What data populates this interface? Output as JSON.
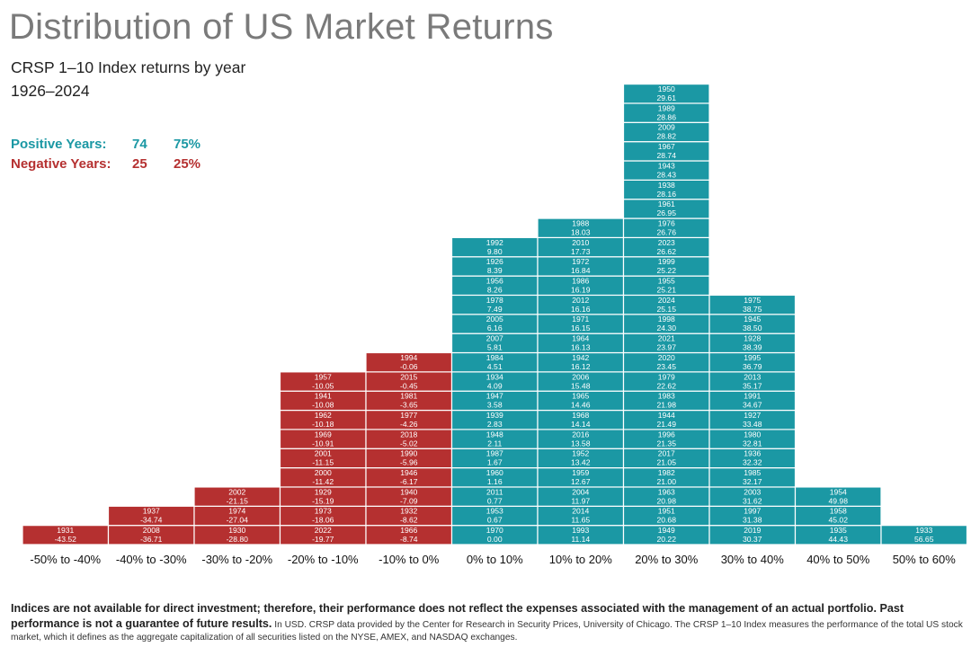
{
  "header": {
    "title": "Distribution of US Market Returns",
    "subtitle": "CRSP 1–10 Index returns by year",
    "period": "1926–2024"
  },
  "stats": {
    "positive_label": "Positive Years:",
    "positive_count": "74",
    "positive_pct": "75%",
    "negative_label": "Negative Years:",
    "negative_count": "25",
    "negative_pct": "25%"
  },
  "colors": {
    "positive": "#1b98a4",
    "negative": "#b53030"
  },
  "footnote": {
    "bold": "Indices are not available for direct investment; therefore, their performance does not reflect the expenses associated with the management of an actual portfolio. Past performance is not a guarantee of future results.",
    "regular": " In USD. CRSP data provided by the Center for Research in Security Prices, University of Chicago. The CRSP 1–10 Index measures the performance of the total US stock market, which it defines as the aggregate capitalization of all securities listed on the NYSE, AMEX, and NASDAQ exchanges."
  },
  "chart_data": {
    "type": "bar",
    "title": "Distribution of US Market Returns",
    "categories": [
      "-50% to -40%",
      "-40% to -30%",
      "-30% to -20%",
      "-20% to -10%",
      "-10% to 0%",
      "0% to 10%",
      "10% to 20%",
      "20% to 30%",
      "30% to 40%",
      "40% to 50%",
      "50% to 60%"
    ],
    "bins": [
      {
        "sign": "negative",
        "years": [
          {
            "year": "1931",
            "ret": "-43.52"
          }
        ]
      },
      {
        "sign": "negative",
        "years": [
          {
            "year": "2008",
            "ret": "-36.71"
          },
          {
            "year": "1937",
            "ret": "-34.74"
          }
        ]
      },
      {
        "sign": "negative",
        "years": [
          {
            "year": "1930",
            "ret": "-28.80"
          },
          {
            "year": "1974",
            "ret": "-27.04"
          },
          {
            "year": "2002",
            "ret": "-21.15"
          }
        ]
      },
      {
        "sign": "negative",
        "years": [
          {
            "year": "2022",
            "ret": "-19.77"
          },
          {
            "year": "1973",
            "ret": "-18.06"
          },
          {
            "year": "1929",
            "ret": "-15.19"
          },
          {
            "year": "2000",
            "ret": "-11.42"
          },
          {
            "year": "2001",
            "ret": "-11.15"
          },
          {
            "year": "1969",
            "ret": "-10.91"
          },
          {
            "year": "1962",
            "ret": "-10.18"
          },
          {
            "year": "1941",
            "ret": "-10.08"
          },
          {
            "year": "1957",
            "ret": "-10.05"
          }
        ]
      },
      {
        "sign": "negative",
        "years": [
          {
            "year": "1966",
            "ret": "-8.74"
          },
          {
            "year": "1932",
            "ret": "-8.62"
          },
          {
            "year": "1940",
            "ret": "-7.09"
          },
          {
            "year": "1946",
            "ret": "-6.17"
          },
          {
            "year": "1990",
            "ret": "-5.96"
          },
          {
            "year": "2018",
            "ret": "-5.02"
          },
          {
            "year": "1977",
            "ret": "-4.26"
          },
          {
            "year": "1981",
            "ret": "-3.65"
          },
          {
            "year": "2015",
            "ret": "-0.45"
          },
          {
            "year": "1994",
            "ret": "-0.06"
          }
        ]
      },
      {
        "sign": "positive",
        "years": [
          {
            "year": "1970",
            "ret": "0.00"
          },
          {
            "year": "1953",
            "ret": "0.67"
          },
          {
            "year": "2011",
            "ret": "0.77"
          },
          {
            "year": "1960",
            "ret": "1.16"
          },
          {
            "year": "1987",
            "ret": "1.67"
          },
          {
            "year": "1948",
            "ret": "2.11"
          },
          {
            "year": "1939",
            "ret": "2.83"
          },
          {
            "year": "1947",
            "ret": "3.58"
          },
          {
            "year": "1934",
            "ret": "4.09"
          },
          {
            "year": "1984",
            "ret": "4.51"
          },
          {
            "year": "2007",
            "ret": "5.81"
          },
          {
            "year": "2005",
            "ret": "6.16"
          },
          {
            "year": "1978",
            "ret": "7.49"
          },
          {
            "year": "1956",
            "ret": "8.26"
          },
          {
            "year": "1926",
            "ret": "8.39"
          },
          {
            "year": "1992",
            "ret": "9.80"
          }
        ]
      },
      {
        "sign": "positive",
        "years": [
          {
            "year": "1993",
            "ret": "11.14"
          },
          {
            "year": "2014",
            "ret": "11.65"
          },
          {
            "year": "2004",
            "ret": "11.97"
          },
          {
            "year": "1959",
            "ret": "12.67"
          },
          {
            "year": "1952",
            "ret": "13.42"
          },
          {
            "year": "2016",
            "ret": "13.58"
          },
          {
            "year": "1968",
            "ret": "14.14"
          },
          {
            "year": "1965",
            "ret": "14.46"
          },
          {
            "year": "2006",
            "ret": "15.48"
          },
          {
            "year": "1942",
            "ret": "16.12"
          },
          {
            "year": "1964",
            "ret": "16.13"
          },
          {
            "year": "1971",
            "ret": "16.15"
          },
          {
            "year": "2012",
            "ret": "16.16"
          },
          {
            "year": "1986",
            "ret": "16.19"
          },
          {
            "year": "1972",
            "ret": "16.84"
          },
          {
            "year": "2010",
            "ret": "17.73"
          },
          {
            "year": "1988",
            "ret": "18.03"
          }
        ]
      },
      {
        "sign": "positive",
        "years": [
          {
            "year": "1949",
            "ret": "20.22"
          },
          {
            "year": "1951",
            "ret": "20.68"
          },
          {
            "year": "1963",
            "ret": "20.98"
          },
          {
            "year": "1982",
            "ret": "21.00"
          },
          {
            "year": "2017",
            "ret": "21.05"
          },
          {
            "year": "1996",
            "ret": "21.35"
          },
          {
            "year": "1944",
            "ret": "21.49"
          },
          {
            "year": "1983",
            "ret": "21.98"
          },
          {
            "year": "1979",
            "ret": "22.62"
          },
          {
            "year": "2020",
            "ret": "23.45"
          },
          {
            "year": "2021",
            "ret": "23.97"
          },
          {
            "year": "1998",
            "ret": "24.30"
          },
          {
            "year": "2024",
            "ret": "25.15"
          },
          {
            "year": "1955",
            "ret": "25.21"
          },
          {
            "year": "1999",
            "ret": "25.22"
          },
          {
            "year": "2023",
            "ret": "26.62"
          },
          {
            "year": "1976",
            "ret": "26.76"
          },
          {
            "year": "1961",
            "ret": "26.95"
          },
          {
            "year": "1938",
            "ret": "28.16"
          },
          {
            "year": "1943",
            "ret": "28.43"
          },
          {
            "year": "1967",
            "ret": "28.74"
          },
          {
            "year": "2009",
            "ret": "28.82"
          },
          {
            "year": "1989",
            "ret": "28.86"
          },
          {
            "year": "1950",
            "ret": "29.61"
          }
        ]
      },
      {
        "sign": "positive",
        "years": [
          {
            "year": "2019",
            "ret": "30.37"
          },
          {
            "year": "1997",
            "ret": "31.38"
          },
          {
            "year": "2003",
            "ret": "31.62"
          },
          {
            "year": "1985",
            "ret": "32.17"
          },
          {
            "year": "1936",
            "ret": "32.32"
          },
          {
            "year": "1980",
            "ret": "32.81"
          },
          {
            "year": "1927",
            "ret": "33.48"
          },
          {
            "year": "1991",
            "ret": "34.67"
          },
          {
            "year": "2013",
            "ret": "35.17"
          },
          {
            "year": "1995",
            "ret": "36.79"
          },
          {
            "year": "1928",
            "ret": "38.39"
          },
          {
            "year": "1945",
            "ret": "38.50"
          },
          {
            "year": "1975",
            "ret": "38.75"
          }
        ]
      },
      {
        "sign": "positive",
        "years": [
          {
            "year": "1935",
            "ret": "44.43"
          },
          {
            "year": "1958",
            "ret": "45.02"
          },
          {
            "year": "1954",
            "ret": "49.98"
          }
        ]
      },
      {
        "sign": "positive",
        "years": [
          {
            "year": "1933",
            "ret": "56.65"
          }
        ]
      }
    ]
  }
}
